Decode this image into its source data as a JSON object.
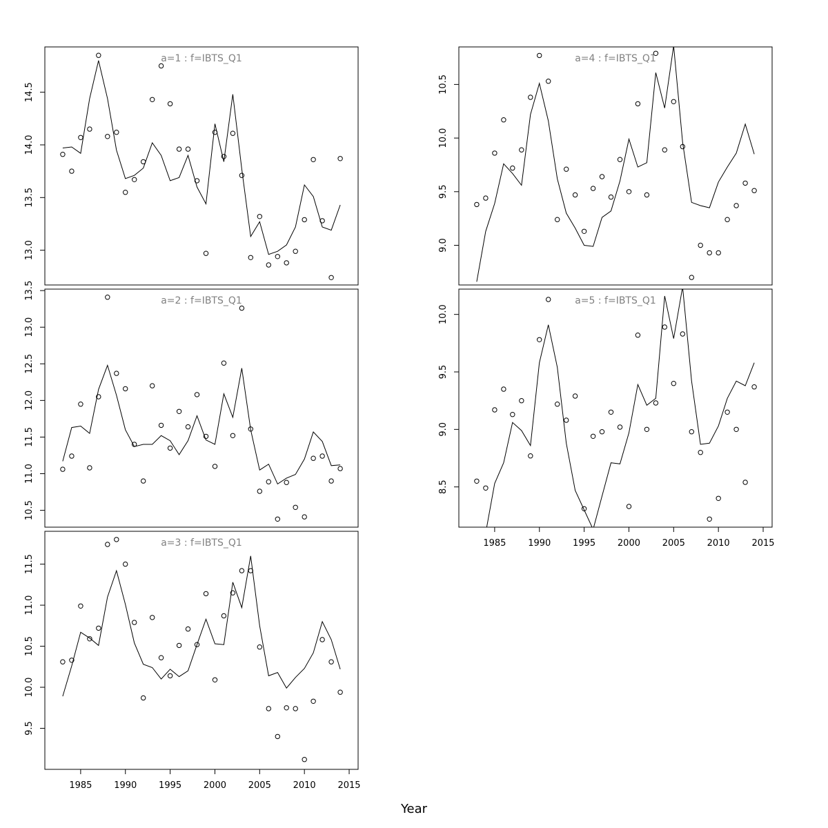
{
  "xlabel": "Year",
  "chart_data": [
    {
      "type": "line",
      "title": "a=1 : f=IBTS_Q1",
      "xlim": [
        1981,
        2016
      ],
      "ylim": [
        12.67,
        14.93
      ],
      "x_ticks": [
        1985,
        1990,
        1995,
        2000,
        2005,
        2010,
        2015
      ],
      "y_ticks": [
        13.0,
        13.5,
        14.0,
        14.5
      ],
      "x_ticks_shown": false,
      "series": [
        {
          "kind": "line",
          "x": [
            1983,
            1984,
            1985,
            1986,
            1987,
            1988,
            1989,
            1990,
            1991,
            1992,
            1993,
            1994,
            1995,
            1996,
            1997,
            1998,
            1999,
            2000,
            2001,
            2002,
            2003,
            2004,
            2005,
            2006,
            2007,
            2008,
            2009,
            2010,
            2011,
            2012,
            2013,
            2014
          ],
          "y": [
            13.97,
            13.98,
            13.92,
            14.44,
            14.8,
            14.44,
            13.95,
            13.68,
            13.71,
            13.78,
            14.02,
            13.9,
            13.66,
            13.69,
            13.9,
            13.6,
            13.44,
            14.2,
            13.84,
            14.48,
            13.77,
            13.13,
            13.27,
            12.96,
            12.99,
            13.05,
            13.22,
            13.62,
            13.51,
            13.22,
            13.19,
            13.43
          ]
        },
        {
          "kind": "points",
          "x": [
            1983,
            1984,
            1985,
            1986,
            1987,
            1988,
            1989,
            1990,
            1991,
            1992,
            1993,
            1994,
            1995,
            1996,
            1997,
            1998,
            1999,
            2000,
            2001,
            2002,
            2003,
            2004,
            2005,
            2006,
            2007,
            2008,
            2009,
            2010,
            2011,
            2012,
            2013,
            2014
          ],
          "y": [
            13.91,
            13.75,
            14.07,
            14.15,
            14.85,
            14.08,
            14.12,
            13.55,
            13.67,
            13.84,
            14.43,
            14.75,
            14.39,
            13.96,
            13.96,
            13.66,
            12.97,
            14.12,
            13.89,
            14.11,
            13.71,
            12.93,
            13.32,
            12.86,
            12.94,
            12.88,
            12.99,
            13.29,
            13.86,
            13.28,
            12.74,
            13.87
          ]
        }
      ]
    },
    {
      "type": "line",
      "title": "a=2 : f=IBTS_Q1",
      "xlim": [
        1981,
        2016
      ],
      "ylim": [
        10.27,
        13.52
      ],
      "x_ticks": [
        1985,
        1990,
        1995,
        2000,
        2005,
        2010,
        2015
      ],
      "y_ticks": [
        10.5,
        11.0,
        11.5,
        12.0,
        12.5,
        13.0,
        13.5
      ],
      "x_ticks_shown": false,
      "series": [
        {
          "kind": "line",
          "x": [
            1983,
            1984,
            1985,
            1986,
            1987,
            1988,
            1989,
            1990,
            1991,
            1992,
            1993,
            1994,
            1995,
            1996,
            1997,
            1998,
            1999,
            2000,
            2001,
            2002,
            2003,
            2004,
            2005,
            2006,
            2007,
            2008,
            2009,
            2010,
            2011,
            2012,
            2013,
            2014
          ],
          "y": [
            11.17,
            11.63,
            11.65,
            11.55,
            12.15,
            12.48,
            12.07,
            11.6,
            11.37,
            11.4,
            11.4,
            11.52,
            11.45,
            11.26,
            11.45,
            11.79,
            11.46,
            11.4,
            12.09,
            11.77,
            12.44,
            11.6,
            11.05,
            11.13,
            10.86,
            10.94,
            10.99,
            11.2,
            11.57,
            11.44,
            11.11,
            11.12
          ]
        },
        {
          "kind": "points",
          "x": [
            1983,
            1984,
            1985,
            1986,
            1987,
            1988,
            1989,
            1990,
            1991,
            1992,
            1993,
            1994,
            1995,
            1996,
            1997,
            1998,
            1999,
            2000,
            2001,
            2002,
            2003,
            2004,
            2005,
            2006,
            2007,
            2008,
            2009,
            2010,
            2011,
            2012,
            2013,
            2014
          ],
          "y": [
            11.06,
            11.24,
            11.95,
            11.08,
            12.05,
            13.41,
            12.37,
            12.16,
            11.4,
            10.9,
            12.2,
            11.66,
            11.35,
            11.85,
            11.64,
            12.08,
            11.51,
            11.1,
            12.51,
            11.52,
            13.26,
            11.61,
            10.76,
            10.89,
            10.38,
            10.88,
            10.54,
            10.41,
            11.21,
            11.24,
            10.9,
            11.07
          ]
        }
      ]
    },
    {
      "type": "line",
      "title": "a=3 : f=IBTS_Q1",
      "xlim": [
        1981,
        2016
      ],
      "ylim": [
        9.0,
        11.9
      ],
      "x_ticks": [
        1985,
        1990,
        1995,
        2000,
        2005,
        2010,
        2015
      ],
      "y_ticks": [
        9.5,
        10.0,
        10.5,
        11.0,
        11.5
      ],
      "x_ticks_shown": true,
      "series": [
        {
          "kind": "line",
          "x": [
            1983,
            1984,
            1985,
            1986,
            1987,
            1988,
            1989,
            1990,
            1991,
            1992,
            1993,
            1994,
            1995,
            1996,
            1997,
            1998,
            1999,
            2000,
            2001,
            2002,
            2003,
            2004,
            2005,
            2006,
            2007,
            2008,
            2009,
            2010,
            2011,
            2012,
            2013,
            2014
          ],
          "y": [
            9.89,
            10.26,
            10.67,
            10.6,
            10.51,
            11.1,
            11.42,
            11.01,
            10.54,
            10.28,
            10.24,
            10.1,
            10.22,
            10.13,
            10.2,
            10.52,
            10.83,
            10.53,
            10.52,
            11.28,
            10.97,
            11.6,
            10.75,
            10.14,
            10.18,
            9.99,
            10.12,
            10.23,
            10.42,
            10.8,
            10.58,
            10.22
          ]
        },
        {
          "kind": "points",
          "x": [
            1983,
            1984,
            1985,
            1986,
            1987,
            1988,
            1989,
            1990,
            1991,
            1992,
            1993,
            1994,
            1995,
            1996,
            1997,
            1998,
            1999,
            2000,
            2001,
            2002,
            2003,
            2004,
            2005,
            2006,
            2007,
            2008,
            2009,
            2010,
            2011,
            2012,
            2013,
            2014
          ],
          "y": [
            10.31,
            10.33,
            10.99,
            10.59,
            10.72,
            11.74,
            11.8,
            11.5,
            10.79,
            9.87,
            10.85,
            10.36,
            10.14,
            10.51,
            10.71,
            10.52,
            11.14,
            10.09,
            10.87,
            11.15,
            11.42,
            11.42,
            10.49,
            9.74,
            9.4,
            9.75,
            9.74,
            9.12,
            9.83,
            10.58,
            10.31,
            9.94
          ]
        }
      ]
    },
    {
      "type": "line",
      "title": "a=4 : f=IBTS_Q1",
      "xlim": [
        1981,
        2016
      ],
      "ylim": [
        8.63,
        10.85
      ],
      "x_ticks": [
        1985,
        1990,
        1995,
        2000,
        2005,
        2010,
        2015
      ],
      "y_ticks": [
        9.0,
        9.5,
        10.0,
        10.5
      ],
      "x_ticks_shown": false,
      "series": [
        {
          "kind": "line",
          "x": [
            1983,
            1984,
            1985,
            1986,
            1987,
            1988,
            1989,
            1990,
            1991,
            1992,
            1993,
            1994,
            1995,
            1996,
            1997,
            1998,
            1999,
            2000,
            2001,
            2002,
            2003,
            2004,
            2005,
            2006,
            2007,
            2008,
            2009,
            2010,
            2011,
            2012,
            2013,
            2014
          ],
          "y": [
            8.66,
            9.13,
            9.39,
            9.76,
            9.67,
            9.56,
            10.22,
            10.51,
            10.16,
            9.62,
            9.3,
            9.16,
            9.0,
            8.99,
            9.26,
            9.32,
            9.6,
            9.99,
            9.73,
            9.77,
            10.61,
            10.28,
            10.86,
            9.96,
            9.4,
            9.37,
            9.35,
            9.59,
            9.73,
            9.86,
            10.13,
            9.85
          ]
        },
        {
          "kind": "points",
          "x": [
            1983,
            1984,
            1985,
            1986,
            1987,
            1988,
            1989,
            1990,
            1991,
            1992,
            1993,
            1994,
            1995,
            1996,
            1997,
            1998,
            1999,
            2000,
            2001,
            2002,
            2003,
            2004,
            2005,
            2006,
            2007,
            2008,
            2009,
            2010,
            2011,
            2012,
            2013,
            2014
          ],
          "y": [
            9.38,
            9.44,
            9.86,
            10.17,
            9.72,
            9.89,
            10.38,
            10.77,
            10.53,
            9.24,
            9.71,
            9.47,
            9.13,
            9.53,
            9.64,
            9.45,
            9.8,
            9.5,
            10.32,
            9.47,
            10.79,
            9.89,
            10.34,
            9.92,
            8.7,
            9.0,
            8.93,
            8.93,
            9.24,
            9.37,
            9.58,
            9.51
          ]
        }
      ]
    },
    {
      "type": "line",
      "title": "a=5 : f=IBTS_Q1",
      "xlim": [
        1981,
        2016
      ],
      "ylim": [
        8.15,
        10.22
      ],
      "x_ticks": [
        1985,
        1990,
        1995,
        2000,
        2005,
        2010,
        2015
      ],
      "y_ticks": [
        8.5,
        9.0,
        9.5,
        10.0
      ],
      "x_ticks_shown": true,
      "series": [
        {
          "kind": "line",
          "x": [
            1983,
            1984,
            1985,
            1986,
            1987,
            1988,
            1989,
            1990,
            1991,
            1992,
            1993,
            1994,
            1995,
            1996,
            1997,
            1998,
            1999,
            2000,
            2001,
            2002,
            2003,
            2004,
            2005,
            2006,
            2007,
            2008,
            2009,
            2010,
            2011,
            2012,
            2013,
            2014
          ],
          "y": [
            7.95,
            8.1,
            8.53,
            8.71,
            9.06,
            8.99,
            8.86,
            9.58,
            9.91,
            9.54,
            8.88,
            8.47,
            8.3,
            8.13,
            8.42,
            8.71,
            8.7,
            8.97,
            9.39,
            9.21,
            9.27,
            10.16,
            9.79,
            10.24,
            9.42,
            8.87,
            8.88,
            9.03,
            9.27,
            9.42,
            9.38,
            9.58
          ]
        },
        {
          "kind": "points",
          "x": [
            1983,
            1984,
            1985,
            1986,
            1987,
            1988,
            1989,
            1990,
            1991,
            1992,
            1993,
            1994,
            1995,
            1996,
            1997,
            1998,
            1999,
            2000,
            2001,
            2002,
            2003,
            2004,
            2005,
            2006,
            2007,
            2008,
            2009,
            2010,
            2011,
            2012,
            2013,
            2014
          ],
          "y": [
            8.55,
            8.49,
            9.17,
            9.35,
            9.13,
            9.25,
            8.77,
            9.78,
            10.13,
            9.22,
            9.08,
            9.29,
            8.31,
            8.94,
            8.98,
            9.15,
            9.02,
            8.33,
            9.82,
            9.0,
            9.23,
            9.89,
            9.4,
            9.83,
            8.98,
            8.8,
            8.22,
            8.4,
            9.15,
            9.0,
            8.54,
            9.37
          ]
        }
      ]
    }
  ]
}
